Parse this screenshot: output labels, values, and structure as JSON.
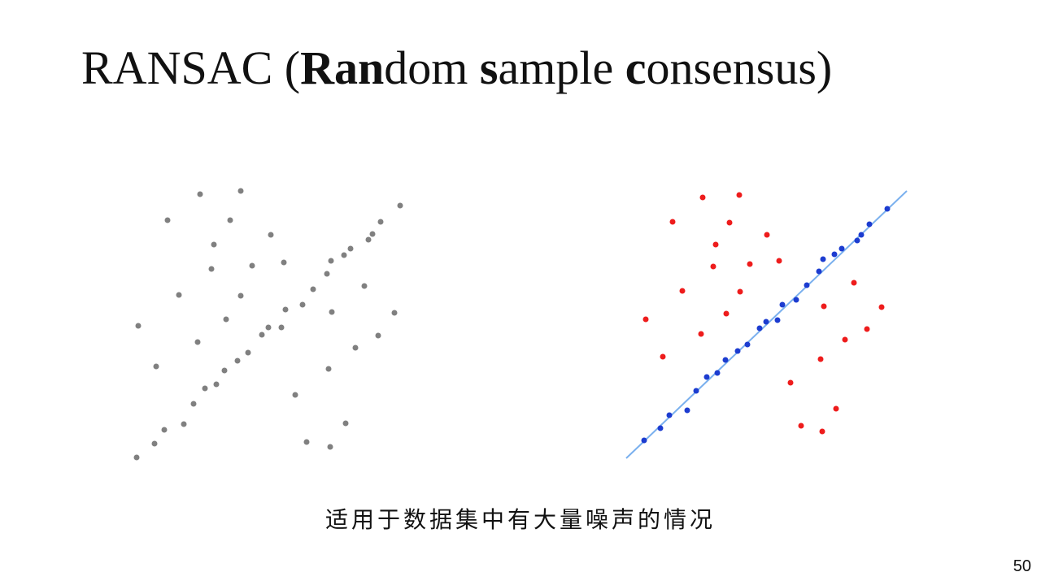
{
  "slide": {
    "title": [
      "RANSAC (",
      "Ran",
      "dom ",
      "s",
      "ample ",
      "c",
      "onsensus)"
    ],
    "caption": "适用于数据集中有大量噪声的情况",
    "page_number": "50"
  }
}
